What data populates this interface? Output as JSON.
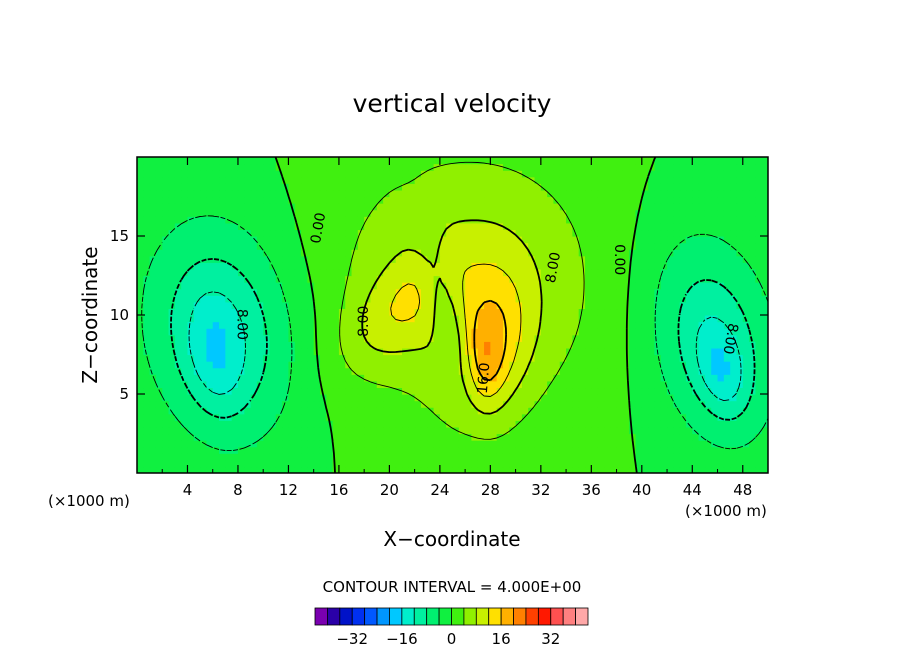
{
  "chart_data": {
    "type": "heatmap",
    "title": "vertical velocity",
    "xlabel": "X−coordinate",
    "ylabel": "Z−coordinate",
    "x_unit": "(×1000 m)",
    "x_unit_bottom": "(×1000 m)",
    "xlim": [
      0,
      50
    ],
    "ylim": [
      0,
      20
    ],
    "x_ticks": [
      4,
      8,
      12,
      16,
      20,
      24,
      28,
      32,
      36,
      40,
      44,
      48
    ],
    "y_ticks": [
      5,
      10,
      15
    ],
    "contour_interval_text": "CONTOUR INTERVAL = 4.000E+00",
    "contour_interval": 4,
    "contour_labels": [
      {
        "text": "0.00",
        "x": 14.4,
        "y": 15.5,
        "angle": -80
      },
      {
        "text": "0.00",
        "x": 38.2,
        "y": 13.5,
        "angle": 90
      },
      {
        "text": "8.00",
        "x": 8.3,
        "y": 9.4,
        "angle": 90
      },
      {
        "text": "8.00",
        "x": 18.0,
        "y": 9.6,
        "angle": -90
      },
      {
        "text": "8.00",
        "x": 33.0,
        "y": 13.0,
        "angle": -80
      },
      {
        "text": "8.00",
        "x": 47.0,
        "y": 8.5,
        "angle": 100
      },
      {
        "text": "16.0",
        "x": 27.5,
        "y": 6.0,
        "angle": -85
      }
    ],
    "field": {
      "base": 0,
      "components": [
        {
          "x0": 6.8,
          "z0": 9.0,
          "amp": -12,
          "sx": 4.3,
          "sz": 5.0,
          "tilt": -0.12
        },
        {
          "x0": 6.2,
          "z0": 7.5,
          "amp": -6,
          "sx": 1.5,
          "sz": 2.5,
          "tilt": -0.1
        },
        {
          "x0": 45.6,
          "z0": 8.6,
          "amp": -11,
          "sx": 3.6,
          "sz": 4.8,
          "tilt": -0.18
        },
        {
          "x0": 46.3,
          "z0": 6.5,
          "amp": -7,
          "sx": 1.3,
          "sz": 2.0,
          "tilt": -0.2
        },
        {
          "x0": 26.2,
          "z0": 12.0,
          "amp": 9,
          "sx": 7.5,
          "sz": 6.0,
          "tilt": 0
        },
        {
          "x0": 20.6,
          "z0": 10.3,
          "amp": 6,
          "sx": 2.6,
          "sz": 2.6,
          "tilt": 0.7
        },
        {
          "x0": 28.0,
          "z0": 8.2,
          "amp": 9,
          "sx": 2.2,
          "sz": 3.4,
          "tilt": 0.1
        },
        {
          "x0": 27.7,
          "z0": 7.0,
          "amp": 5,
          "sx": 1.0,
          "sz": 2.0,
          "tilt": 0.05
        },
        {
          "x0": 24.6,
          "z0": 9.8,
          "amp": -6,
          "sx": 1.0,
          "sz": 3.4,
          "tilt": -0.3
        }
      ]
    },
    "colorbar": {
      "colors": [
        "#7a00b0",
        "#2a00a8",
        "#0012c8",
        "#0030f0",
        "#0058ff",
        "#0096ff",
        "#00c8ff",
        "#00eecc",
        "#00f0a0",
        "#00f070",
        "#10f040",
        "#40f010",
        "#90f000",
        "#c8f000",
        "#ffe000",
        "#ffb000",
        "#ff8000",
        "#ff4000",
        "#ff1800",
        "#ff5050",
        "#ff8080",
        "#ffa8a8"
      ],
      "tick_values": [
        -32,
        -16,
        0,
        16,
        32
      ],
      "tick_labels": [
        "−32",
        "−16",
        "0",
        "16",
        "32"
      ]
    },
    "grid": false
  }
}
